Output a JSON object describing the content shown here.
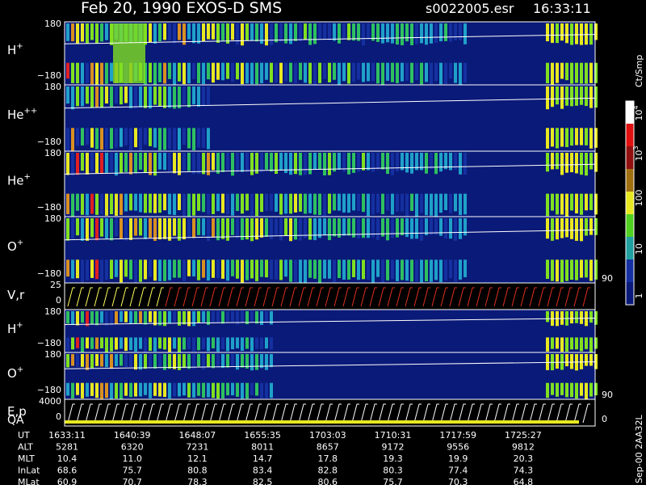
{
  "header": {
    "title": "Feb 20, 1990   EXOS-D SMS",
    "file": "s0022005.esr",
    "time": "16:33:11"
  },
  "panels": [
    {
      "label": "H",
      "sup": "+",
      "top": "180",
      "bottom": "−180"
    },
    {
      "label": "He",
      "sup": "++",
      "top": "180",
      "bottom": "−180"
    },
    {
      "label": "He",
      "sup": "+",
      "top": "180",
      "bottom": "−180"
    },
    {
      "label": "O",
      "sup": "+",
      "top": "180",
      "bottom": "−180",
      "right": "90"
    },
    {
      "label": "V,r",
      "top": "25",
      "bottom": "0"
    },
    {
      "label": "H",
      "sup": "+",
      "top": "180",
      "bottom": "−180"
    },
    {
      "label": "O",
      "sup": "+",
      "top": "180",
      "bottom": "−180",
      "right": "90"
    },
    {
      "label": "E,p",
      "top": "4000",
      "bottom": "0",
      "right": "0",
      "extra": "QA"
    }
  ],
  "colorbar": {
    "title": "Ct/Smp",
    "labels": [
      {
        "base": "10",
        "sup": "4"
      },
      {
        "base": "10",
        "sup": "3"
      },
      {
        "base": "100"
      },
      {
        "base": "10"
      },
      {
        "base": "1"
      }
    ]
  },
  "footer": {
    "rows": [
      {
        "name": "UT",
        "values": [
          "1633:11",
          "1640:39",
          "1648:07",
          "1655:35",
          "1703:03",
          "1710:31",
          "1717:59",
          "1725:27"
        ]
      },
      {
        "name": "ALT",
        "values": [
          "5281",
          "6320",
          "7231",
          "8011",
          "8657",
          "9172",
          "9556",
          "9812"
        ]
      },
      {
        "name": "MLT",
        "values": [
          "10.4",
          "11.0",
          "12.1",
          "14.7",
          "17.8",
          "19.3",
          "19.9",
          "20.3"
        ]
      },
      {
        "name": "InLat",
        "values": [
          "68.6",
          "75.7",
          "80.8",
          "83.4",
          "82.8",
          "80.3",
          "77.4",
          "74.3"
        ]
      },
      {
        "name": "MLat",
        "values": [
          "60.9",
          "70.7",
          "78.3",
          "82.5",
          "80.6",
          "75.7",
          "70.3",
          "64.8"
        ]
      }
    ],
    "stamp": "Sep-00 2AA32L"
  }
}
